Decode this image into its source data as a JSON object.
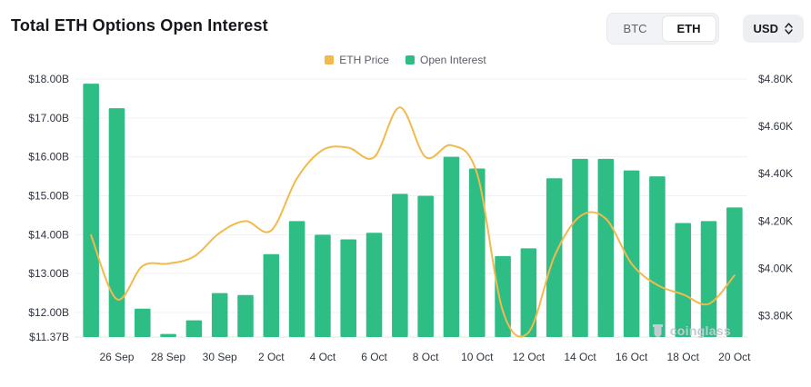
{
  "header": {
    "title": "Total ETH Options Open Interest",
    "currency_toggle": {
      "options": [
        "BTC",
        "ETH"
      ],
      "selected": "ETH"
    },
    "unit_select": {
      "value": "USD"
    }
  },
  "legend": [
    {
      "label": "ETH Price",
      "color": "#F2BA4D"
    },
    {
      "label": "Open Interest",
      "color": "#2EBD85"
    }
  ],
  "watermark": "coinglass",
  "chart_data": {
    "type": "bar+line",
    "title": "Total ETH Options Open Interest",
    "categories": [
      "25 Sep",
      "26 Sep",
      "27 Sep",
      "28 Sep",
      "29 Sep",
      "30 Sep",
      "1 Oct",
      "2 Oct",
      "3 Oct",
      "4 Oct",
      "5 Oct",
      "6 Oct",
      "7 Oct",
      "8 Oct",
      "9 Oct",
      "10 Oct",
      "11 Oct",
      "12 Oct",
      "13 Oct",
      "14 Oct",
      "15 Oct",
      "16 Oct",
      "17 Oct",
      "18 Oct",
      "19 Oct",
      "20 Oct"
    ],
    "series": [
      {
        "name": "Open Interest",
        "type": "bar",
        "axis": "left",
        "unit": "USD billions",
        "color": "#2EBD85",
        "values": [
          17.88,
          17.25,
          12.1,
          11.45,
          11.8,
          12.5,
          12.45,
          13.5,
          14.35,
          14.0,
          13.88,
          14.05,
          15.05,
          15.0,
          16.0,
          15.7,
          13.45,
          13.65,
          15.45,
          15.95,
          15.95,
          15.65,
          15.5,
          14.3,
          14.35,
          14.7
        ]
      },
      {
        "name": "ETH Price",
        "type": "line",
        "axis": "right",
        "unit": "USD thousands",
        "color": "#F2BA4D",
        "values": [
          4.14,
          3.87,
          4.01,
          4.02,
          4.05,
          4.15,
          4.2,
          4.16,
          4.38,
          4.5,
          4.51,
          4.47,
          4.68,
          4.47,
          4.52,
          4.4,
          3.82,
          3.73,
          4.05,
          4.22,
          4.21,
          4.02,
          3.93,
          3.89,
          3.85,
          3.97
        ]
      }
    ],
    "left_axis": {
      "min": 11.37,
      "max": 18.0,
      "tick_values": [
        18.0,
        17.0,
        16.0,
        15.0,
        14.0,
        13.0,
        12.0,
        11.37
      ],
      "tick_labels": [
        "$18.00B",
        "$17.00B",
        "$16.00B",
        "$15.00B",
        "$14.00B",
        "$13.00B",
        "$12.00B",
        "$11.37B"
      ]
    },
    "right_axis": {
      "min": 3.71,
      "max": 4.8,
      "tick_values": [
        4.8,
        4.6,
        4.4,
        4.2,
        4.0,
        3.8
      ],
      "tick_labels": [
        "$4.80K",
        "$4.60K",
        "$4.40K",
        "$4.20K",
        "$4.00K",
        "$3.80K"
      ]
    },
    "x_tick_indices": [
      1,
      3,
      5,
      7,
      9,
      11,
      13,
      15,
      17,
      19,
      21,
      23,
      25
    ],
    "x_tick_labels": [
      "26 Sep",
      "28 Sep",
      "30 Sep",
      "2 Oct",
      "4 Oct",
      "6 Oct",
      "8 Oct",
      "10 Oct",
      "12 Oct",
      "14 Oct",
      "16 Oct",
      "18 Oct",
      "20 Oct"
    ],
    "grid": true,
    "legend_position": "top-center"
  }
}
